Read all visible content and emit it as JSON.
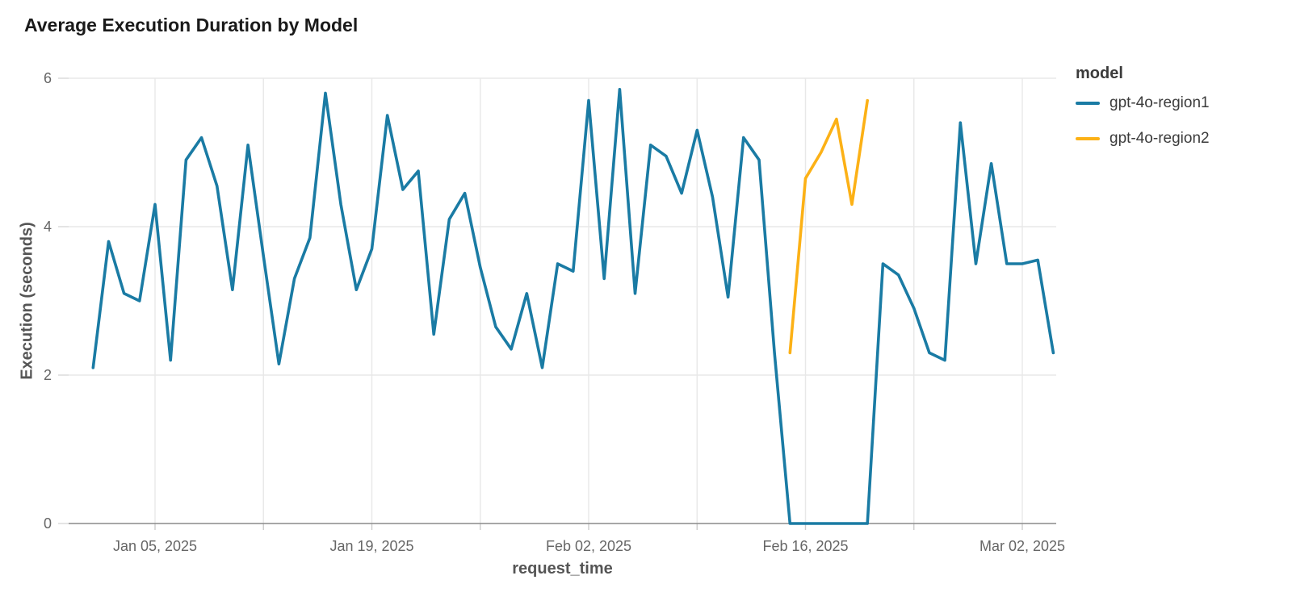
{
  "page": {
    "title": "Average Execution Duration by Model"
  },
  "legend": {
    "title": "model",
    "items": [
      {
        "label": "gpt-4o-region1",
        "color": "#1A7BA4"
      },
      {
        "label": "gpt-4o-region2",
        "color": "#FCB116"
      }
    ]
  },
  "chart_data": {
    "type": "line",
    "title": "Average Execution Duration by Model",
    "xlabel": "request_time",
    "ylabel": "Execution (seconds)",
    "ylim": [
      0,
      6
    ],
    "yticks": [
      0,
      2,
      4,
      6
    ],
    "grid": true,
    "legend_position": "right",
    "x_tick_labels": [
      {
        "date": "2025-01-05",
        "label": "Jan 05, 2025"
      },
      {
        "date": "2025-01-19",
        "label": "Jan 19, 2025"
      },
      {
        "date": "2025-02-02",
        "label": "Feb 02, 2025"
      },
      {
        "date": "2025-02-16",
        "label": "Feb 16, 2025"
      },
      {
        "date": "2025-03-02",
        "label": "Mar 02, 2025"
      }
    ],
    "x_gridline_dates": [
      "2025-01-05",
      "2025-01-12",
      "2025-01-19",
      "2025-01-26",
      "2025-02-02",
      "2025-02-09",
      "2025-02-16",
      "2025-02-23",
      "2025-03-02"
    ],
    "series": [
      {
        "name": "gpt-4o-region1",
        "color": "#1A7BA4",
        "start_date": "2025-01-01",
        "cadence_days": 1,
        "values": [
          2.1,
          3.8,
          3.1,
          3.0,
          4.3,
          2.2,
          4.9,
          5.2,
          4.55,
          3.15,
          5.1,
          3.6,
          2.15,
          3.3,
          3.85,
          5.8,
          4.3,
          3.15,
          3.7,
          5.5,
          4.5,
          4.75,
          2.55,
          4.1,
          4.45,
          3.45,
          2.65,
          2.35,
          3.1,
          2.1,
          3.5,
          3.4,
          5.7,
          3.3,
          5.85,
          3.1,
          5.1,
          4.95,
          4.45,
          5.3,
          4.4,
          3.05,
          5.2,
          4.9,
          2.3,
          0,
          0,
          0,
          0,
          0,
          0,
          3.5,
          3.35,
          2.9,
          2.3,
          2.2,
          5.4,
          3.5,
          4.85,
          3.5,
          3.5,
          3.55,
          2.3
        ]
      },
      {
        "name": "gpt-4o-region2",
        "color": "#FCB116",
        "start_date": "2025-02-15",
        "cadence_days": 1,
        "values": [
          2.3,
          4.65,
          5.0,
          5.45,
          4.3,
          5.7
        ]
      }
    ]
  }
}
